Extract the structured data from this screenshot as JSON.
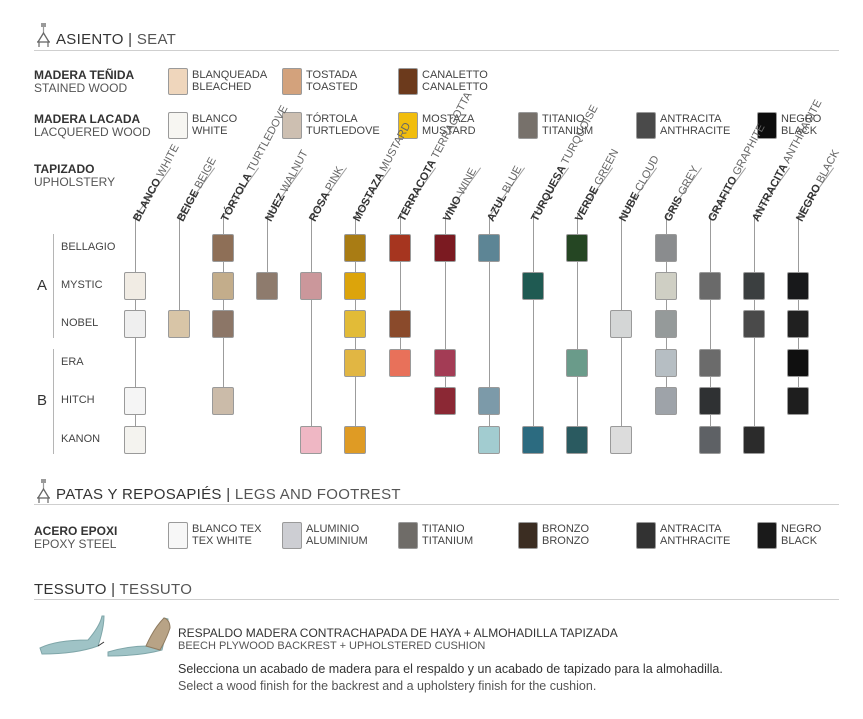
{
  "seat": {
    "title_es": "ASIENTO",
    "sep": "|",
    "title_en": "SEAT"
  },
  "stained_wood": {
    "label_es": "MADERA TEÑIDA",
    "label_en": "STAINED WOOD",
    "swatches": [
      {
        "es": "BLANQUEADA",
        "en": "BLEACHED",
        "color": "#efd6bc"
      },
      {
        "es": "TOSTADA",
        "en": "TOASTED",
        "color": "#d3a27c"
      },
      {
        "es": "CANALETTO",
        "en": "CANALETTO",
        "color": "#6c3a1c"
      }
    ]
  },
  "lacquered_wood": {
    "label_es": "MADERA LACADA",
    "label_en": "LACQUERED WOOD",
    "swatches": [
      {
        "es": "BLANCO",
        "en": "WHITE",
        "color": "#f7f6f2"
      },
      {
        "es": "TÓRTOLA",
        "en": "TURTLEDOVE",
        "color": "#cdbfb1"
      },
      {
        "es": "MOSTAZA",
        "en": "MUSTARD",
        "color": "#f1bd0d"
      },
      {
        "es": "TITANIO",
        "en": "TITANIUM",
        "color": "#77716b"
      },
      {
        "es": "ANTRACITA",
        "en": "ANTHRACITE",
        "color": "#4a4a4a"
      },
      {
        "es": "NEGRO",
        "en": "BLACK",
        "color": "#0d0d0d"
      }
    ]
  },
  "upholstery": {
    "label_es": "TAPIZADO",
    "label_en": "UPHOLSTERY",
    "columns": [
      {
        "es": "BLANCO",
        "en": "WHITE"
      },
      {
        "es": "BEIGE",
        "en": "BEIGE"
      },
      {
        "es": "TÓRTOLA",
        "en": "TURTLEDOVE"
      },
      {
        "es": "NUEZ",
        "en": "WALNUT"
      },
      {
        "es": "ROSA",
        "en": "PINK"
      },
      {
        "es": "MOSTAZA",
        "en": "MUSTARD"
      },
      {
        "es": "TERRACOTA",
        "en": "TERRACOTTA"
      },
      {
        "es": "VINO",
        "en": "WINE"
      },
      {
        "es": "AZUL",
        "en": "BLUE"
      },
      {
        "es": "TURQUESA",
        "en": "TURQUOISE"
      },
      {
        "es": "VERDE",
        "en": "GREEN"
      },
      {
        "es": "NUBE",
        "en": "CLOUD"
      },
      {
        "es": "GRIS",
        "en": "GREY"
      },
      {
        "es": "GRAFITO",
        "en": "GRAPHITE"
      },
      {
        "es": "ANTRACITA",
        "en": "ANTHRACITE"
      },
      {
        "es": "NEGRO",
        "en": "BLACK"
      }
    ],
    "groups": [
      {
        "name": "A",
        "rows": [
          "BELLAGIO",
          "MYSTIC",
          "NOBEL"
        ]
      },
      {
        "name": "B",
        "rows": [
          "ERA",
          "HITCH",
          "KANON"
        ]
      }
    ],
    "cells": {
      "BELLAGIO": [
        null,
        null,
        "#8e6f57",
        null,
        null,
        "#a97c14",
        "#a6351f",
        "#7b1a21",
        "#5d8595",
        null,
        "#254623",
        null,
        "#8a8c8e",
        null,
        null,
        null
      ],
      "MYSTIC": [
        "#f1ece4",
        null,
        "#c3ad8b",
        "#8e7b6d",
        "#cb979b",
        "#dca40b",
        null,
        null,
        null,
        "#1f5a52",
        null,
        null,
        "#cfcfc4",
        "#6a6a6a",
        "#3b3f40",
        "#18191b"
      ],
      "NOBEL": [
        "#efefef",
        "#d8c5a7",
        "#8c7667",
        null,
        null,
        "#e2bb37",
        "#8a4a2b",
        null,
        null,
        null,
        null,
        "#d4d6d6",
        "#959a9a",
        null,
        "#4a4a4a",
        "#202020"
      ],
      "ERA": [
        null,
        null,
        null,
        null,
        null,
        "#e1b643",
        "#e8715a",
        "#a33c55",
        null,
        null,
        "#6a9b8a",
        null,
        "#b6bec3",
        "#6b6b6b",
        null,
        "#101010"
      ],
      "HITCH": [
        "#f5f5f5",
        null,
        "#cbbba9",
        null,
        null,
        null,
        null,
        "#8b2834",
        "#7c9aa9",
        null,
        null,
        null,
        "#9ea3a9",
        "#2f3133",
        null,
        "#1e1e1e"
      ],
      "KANON": [
        "#f4f3ef",
        null,
        null,
        null,
        "#efb7c4",
        "#df9b24",
        null,
        null,
        "#a2ccd0",
        "#2c6b80",
        "#2a5a60",
        "#dcdcdc",
        null,
        "#5e6165",
        "#2b2b2b",
        null
      ]
    }
  },
  "legs": {
    "title_es": "PATAS Y REPOSAPIÉS",
    "sep": "|",
    "title_en": "LEGS AND FOOTREST",
    "label_es": "ACERO EPOXI",
    "label_en": "EPOXY STEEL",
    "swatches": [
      {
        "es": "BLANCO TEX",
        "en": "TEX WHITE",
        "color": "#f7f7f7"
      },
      {
        "es": "ALUMINIO",
        "en": "ALUMINIUM",
        "color": "#cdced3"
      },
      {
        "es": "TITANIO",
        "en": "TITANIUM",
        "color": "#6f6c68"
      },
      {
        "es": "BRONZO",
        "en": "BRONZO",
        "color": "#3b2d22"
      },
      {
        "es": "ANTRACITA",
        "en": "ANTHRACITE",
        "color": "#323232"
      },
      {
        "es": "NEGRO",
        "en": "BLACK",
        "color": "#1a1a1a"
      }
    ]
  },
  "tessuto": {
    "title_es": "TESSUTO",
    "sep": "|",
    "title_en": "TESSUTO",
    "line1_es": "RESPALDO MADERA CONTRACHAPADA DE HAYA + ALMOHADILLA TAPIZADA",
    "line1_en": "BEECH PLYWOOD BACKREST + UPHOLSTERED CUSHION",
    "note_es": "Selecciona un acabado de madera para el respaldo y un acabado de tapizado para la almohadilla.",
    "note_en": "Select a wood finish for the backrest and a upholstery finish for the cushion."
  }
}
